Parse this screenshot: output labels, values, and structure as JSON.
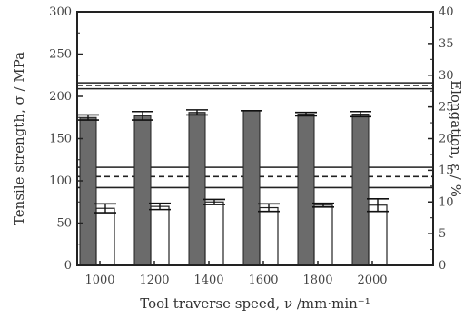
{
  "chart_data": {
    "type": "bar",
    "xlabel": "Tool traverse speed,  ν /mm·min⁻¹",
    "ylabel_left": "Tensile strength,  σ / MPa",
    "ylabel_right": "Elongation,  ε / %",
    "ylim_left": [
      0,
      300
    ],
    "ylim_right": [
      0,
      40
    ],
    "yticks_left": [
      0,
      50,
      100,
      150,
      200,
      250,
      300
    ],
    "yticks_right": [
      0,
      5,
      10,
      15,
      20,
      25,
      30,
      35,
      40
    ],
    "categories": [
      "1000",
      "1200",
      "1400",
      "1600",
      "1800",
      "2000"
    ],
    "grid": false,
    "legend": "none",
    "series": [
      {
        "axis": "left",
        "values": [
          175,
          177,
          181,
          183,
          179,
          179
        ],
        "errors": [
          3,
          5,
          3,
          0,
          2,
          3
        ],
        "color": "#6b6b6b"
      },
      {
        "axis": "right",
        "values": [
          9.0,
          9.3,
          10.0,
          9.1,
          9.5,
          9.5
        ],
        "errors": [
          0.7,
          0.5,
          0.4,
          0.6,
          0.3,
          1.0
        ],
        "color": "#ffffff"
      }
    ],
    "reference_lines": [
      {
        "axis": "left",
        "value": 216,
        "style": "solid"
      },
      {
        "axis": "left",
        "value": 213,
        "style": "dashed"
      },
      {
        "axis": "left",
        "value": 209,
        "style": "solid"
      },
      {
        "axis": "left",
        "value": 116,
        "style": "solid"
      },
      {
        "axis": "left",
        "value": 105,
        "style": "dashed"
      },
      {
        "axis": "left",
        "value": 92,
        "style": "solid"
      }
    ]
  }
}
